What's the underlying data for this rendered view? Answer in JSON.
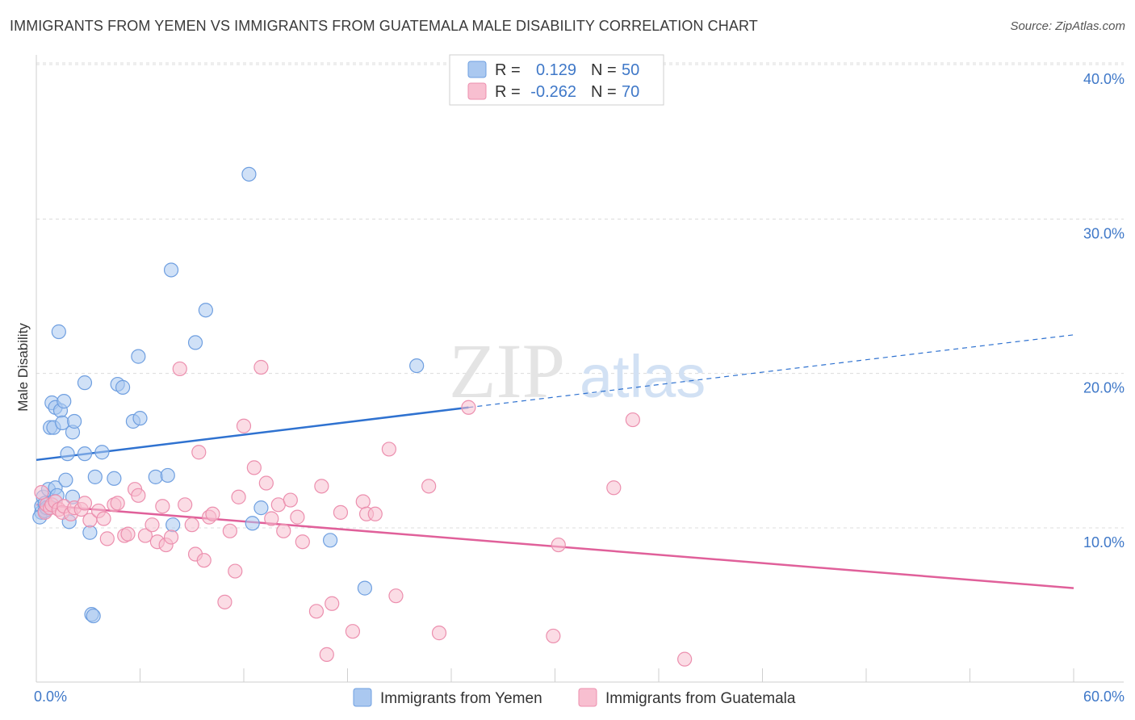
{
  "title": "IMMIGRANTS FROM YEMEN VS IMMIGRANTS FROM GUATEMALA MALE DISABILITY CORRELATION CHART",
  "source": "Source: ZipAtlas.com",
  "watermark": {
    "zip": "ZIP",
    "atlas": "atlas"
  },
  "legend": [
    {
      "r_label": "R =",
      "r_value": "0.129",
      "n_label": "N =",
      "n_value": "50",
      "color": "#aac8f0",
      "stroke": "#6f9fe0"
    },
    {
      "r_label": "R =",
      "r_value": "-0.262",
      "n_label": "N =",
      "n_value": "70",
      "color": "#f8bfd0",
      "stroke": "#ec8fae"
    }
  ],
  "chart_data": {
    "type": "scatter",
    "title": "IMMIGRANTS FROM YEMEN VS IMMIGRANTS FROM GUATEMALA MALE DISABILITY CORRELATION CHART",
    "xlabel": "",
    "ylabel": "Male Disability",
    "xlim": [
      0,
      60
    ],
    "ylim": [
      0,
      41
    ],
    "x_tick_labels": [
      "0.0%",
      "60.0%"
    ],
    "y_ticks": [
      10,
      20,
      30,
      40
    ],
    "y_tick_labels": [
      "10.0%",
      "20.0%",
      "30.0%",
      "40.0%"
    ],
    "series": [
      {
        "name": "Immigrants from Yemen",
        "color": "#6f9fe0",
        "fill": "#aac8f0",
        "trend": {
          "x0": 0,
          "y0": 14.4,
          "x1": 25,
          "y1": 17.8,
          "dash_to_x": 60,
          "dash_to_y": 22.5,
          "color": "#2f72d0"
        },
        "points": [
          [
            0.3,
            11.0
          ],
          [
            0.3,
            11.4
          ],
          [
            0.4,
            12.0
          ],
          [
            0.5,
            11.6
          ],
          [
            0.6,
            11.2
          ],
          [
            0.7,
            12.5
          ],
          [
            0.8,
            16.5
          ],
          [
            0.9,
            18.1
          ],
          [
            1.0,
            16.5
          ],
          [
            1.1,
            17.8
          ],
          [
            1.1,
            12.6
          ],
          [
            1.3,
            22.7
          ],
          [
            1.4,
            17.6
          ],
          [
            1.5,
            16.8
          ],
          [
            1.6,
            18.2
          ],
          [
            1.7,
            13.1
          ],
          [
            1.8,
            14.8
          ],
          [
            1.9,
            10.4
          ],
          [
            2.1,
            12.0
          ],
          [
            2.1,
            16.2
          ],
          [
            2.2,
            16.9
          ],
          [
            2.8,
            19.4
          ],
          [
            2.8,
            14.8
          ],
          [
            3.1,
            9.7
          ],
          [
            3.2,
            4.4
          ],
          [
            3.3,
            4.3
          ],
          [
            3.4,
            13.3
          ],
          [
            3.8,
            14.9
          ],
          [
            4.5,
            13.2
          ],
          [
            4.7,
            19.3
          ],
          [
            5.0,
            19.1
          ],
          [
            5.6,
            16.9
          ],
          [
            5.9,
            21.1
          ],
          [
            6.0,
            17.1
          ],
          [
            6.9,
            13.3
          ],
          [
            7.6,
            13.4
          ],
          [
            7.8,
            26.7
          ],
          [
            7.9,
            10.2
          ],
          [
            9.2,
            22.0
          ],
          [
            9.8,
            24.1
          ],
          [
            12.3,
            32.9
          ],
          [
            12.5,
            10.3
          ],
          [
            13.0,
            11.3
          ],
          [
            17.0,
            9.2
          ],
          [
            19.0,
            6.1
          ],
          [
            22.0,
            20.5
          ],
          [
            0.2,
            10.7
          ],
          [
            0.5,
            11.1
          ],
          [
            0.6,
            11.3
          ],
          [
            1.2,
            12.1
          ]
        ]
      },
      {
        "name": "Immigrants from Guatemala",
        "color": "#ec8fae",
        "fill": "#f8bfd0",
        "trend": {
          "x0": 0,
          "y0": 11.5,
          "x1": 60,
          "y1": 6.1,
          "color": "#e0609a"
        },
        "points": [
          [
            0.3,
            12.3
          ],
          [
            0.5,
            11.0
          ],
          [
            0.6,
            11.5
          ],
          [
            0.8,
            11.3
          ],
          [
            0.9,
            11.5
          ],
          [
            1.1,
            11.7
          ],
          [
            1.3,
            11.2
          ],
          [
            1.5,
            11.0
          ],
          [
            1.6,
            11.4
          ],
          [
            2.0,
            10.9
          ],
          [
            2.2,
            11.3
          ],
          [
            2.6,
            11.2
          ],
          [
            2.8,
            11.6
          ],
          [
            3.1,
            10.5
          ],
          [
            3.6,
            11.1
          ],
          [
            3.9,
            10.6
          ],
          [
            4.1,
            9.3
          ],
          [
            4.5,
            11.5
          ],
          [
            4.7,
            11.6
          ],
          [
            5.1,
            9.5
          ],
          [
            5.3,
            9.6
          ],
          [
            5.7,
            12.5
          ],
          [
            5.9,
            12.1
          ],
          [
            6.3,
            9.5
          ],
          [
            6.7,
            10.2
          ],
          [
            7.0,
            9.1
          ],
          [
            7.3,
            11.4
          ],
          [
            7.5,
            8.9
          ],
          [
            7.8,
            9.4
          ],
          [
            8.3,
            20.3
          ],
          [
            8.6,
            11.5
          ],
          [
            9.0,
            10.2
          ],
          [
            9.2,
            8.3
          ],
          [
            9.4,
            14.9
          ],
          [
            9.7,
            7.9
          ],
          [
            10.0,
            10.7
          ],
          [
            10.2,
            10.9
          ],
          [
            10.9,
            5.2
          ],
          [
            11.2,
            9.8
          ],
          [
            11.5,
            7.2
          ],
          [
            11.7,
            12.0
          ],
          [
            12.0,
            16.6
          ],
          [
            12.6,
            13.9
          ],
          [
            13.0,
            20.4
          ],
          [
            13.3,
            12.9
          ],
          [
            13.6,
            10.6
          ],
          [
            14.0,
            11.5
          ],
          [
            14.3,
            9.8
          ],
          [
            14.7,
            11.8
          ],
          [
            15.1,
            10.7
          ],
          [
            15.4,
            9.1
          ],
          [
            16.2,
            4.6
          ],
          [
            16.5,
            12.7
          ],
          [
            16.8,
            1.8
          ],
          [
            17.1,
            5.1
          ],
          [
            17.6,
            11.0
          ],
          [
            18.3,
            3.3
          ],
          [
            18.9,
            11.7
          ],
          [
            19.1,
            10.9
          ],
          [
            19.6,
            10.9
          ],
          [
            20.4,
            15.1
          ],
          [
            20.8,
            5.6
          ],
          [
            22.7,
            12.7
          ],
          [
            23.3,
            3.2
          ],
          [
            25.0,
            17.8
          ],
          [
            29.9,
            3.0
          ],
          [
            30.2,
            8.9
          ],
          [
            33.4,
            12.6
          ],
          [
            34.5,
            17.0
          ],
          [
            37.5,
            1.5
          ]
        ]
      }
    ],
    "extra_points_note": "",
    "legend_position": "bottom"
  },
  "bottom_legend": [
    {
      "label": "Immigrants from Yemen"
    },
    {
      "label": "Immigrants from Guatemala"
    }
  ]
}
